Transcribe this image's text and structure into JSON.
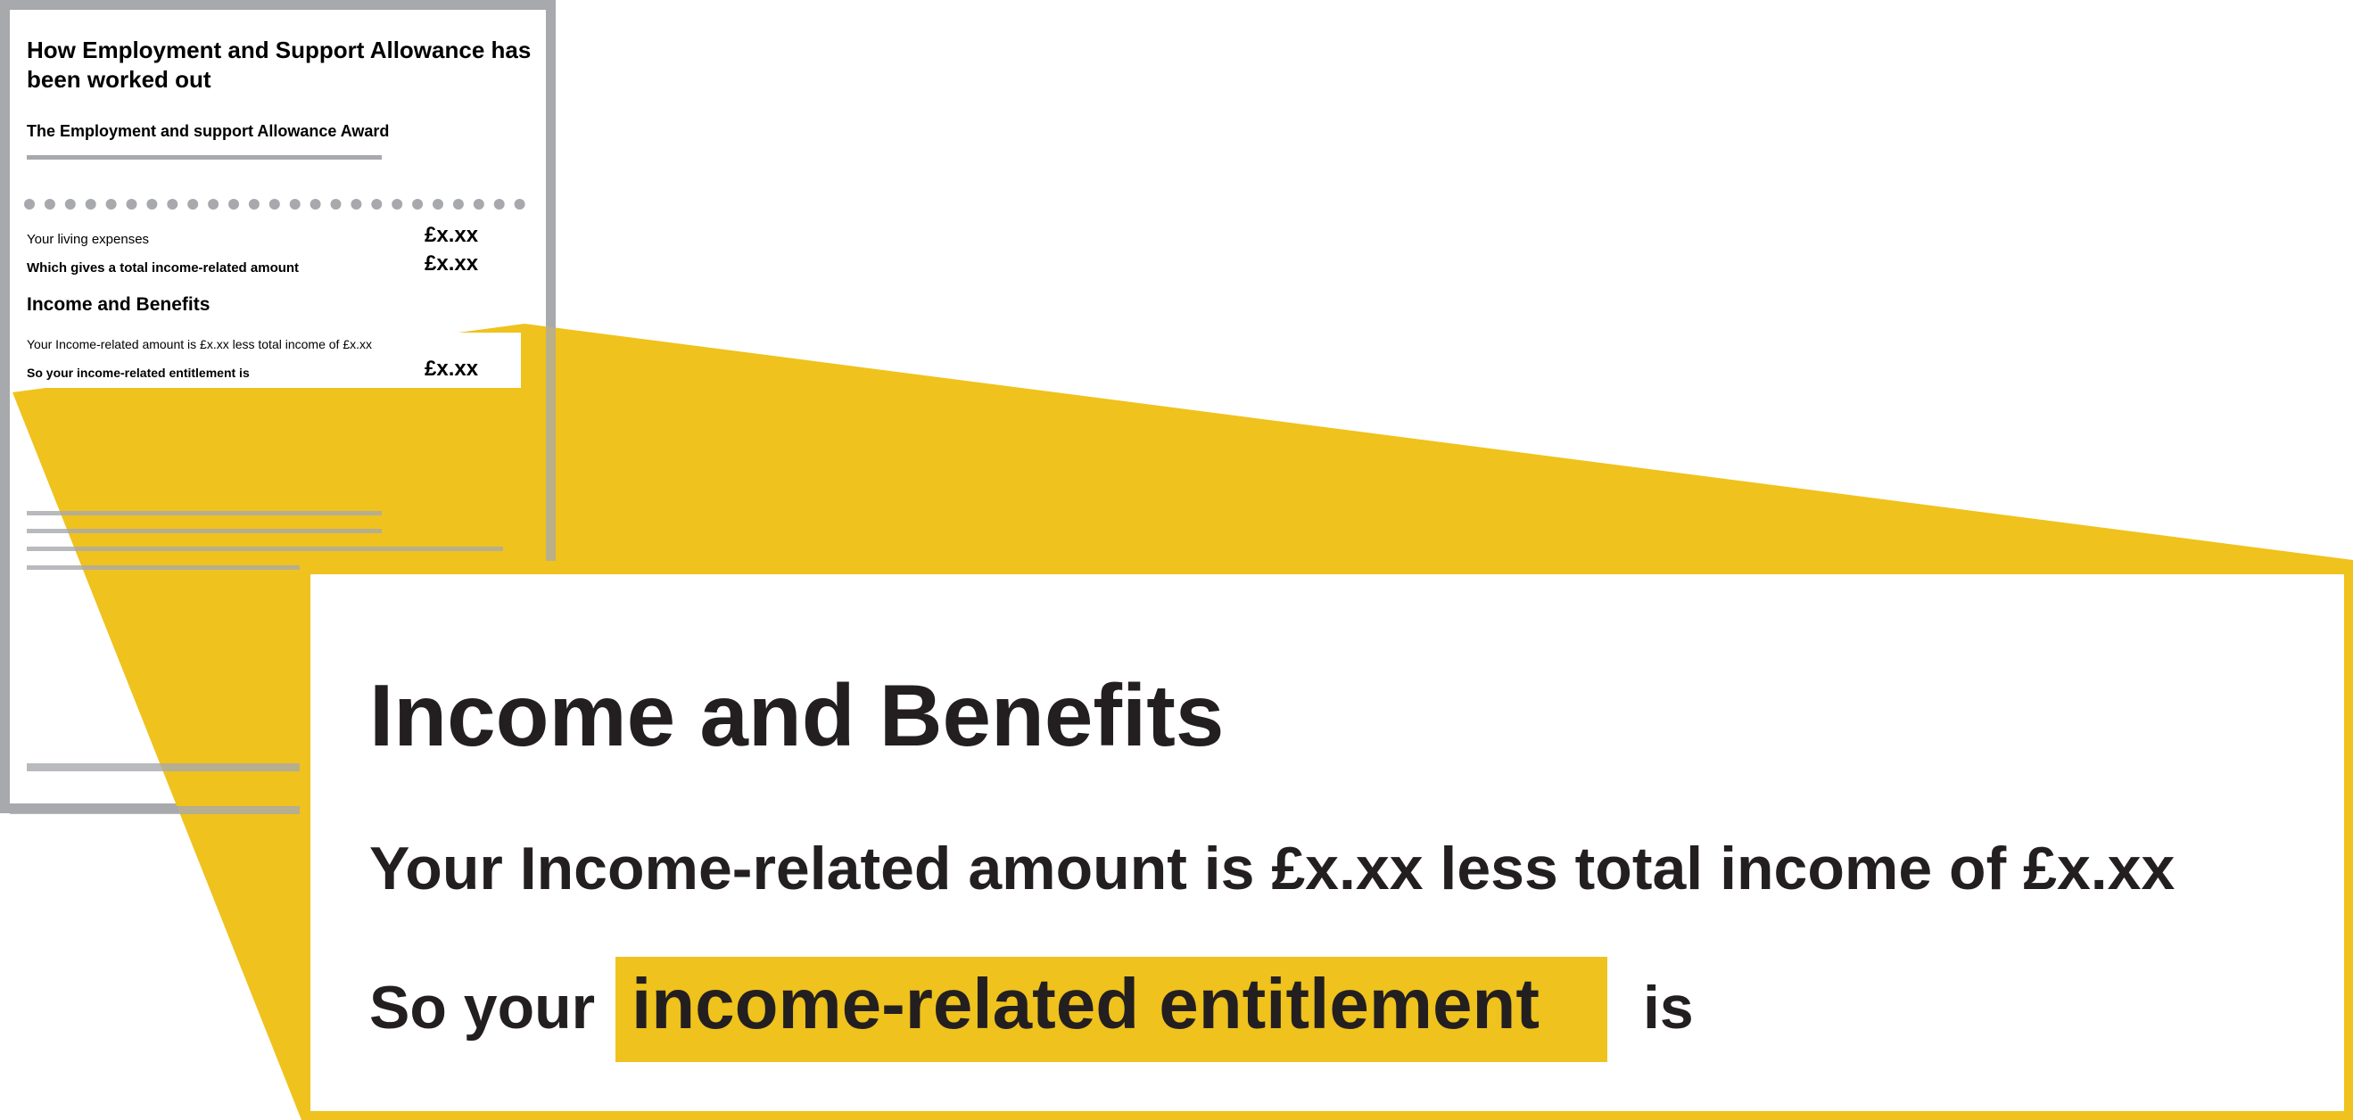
{
  "document": {
    "title": "How Employment and Support Allowance has been worked out",
    "subtitle": "The Employment and support Allowance Award",
    "rows": [
      {
        "label": "Your living expenses",
        "amount": "£x.xx"
      },
      {
        "label": "Which gives a total income-related amount",
        "amount": "£x.xx"
      }
    ],
    "section_heading": "Income and Benefits",
    "highlight_row1": "Your Income-related amount is £x.xx less total income of £x.xx",
    "highlight_row2_label": "So your income-related entitlement is",
    "highlight_row2_amount": "£x.xx"
  },
  "callout": {
    "heading": "Income and Benefits",
    "line1": "Your Income-related amount is £x.xx less total income of £x.xx",
    "line2_prefix": "So your",
    "line2_highlight": "income-related entitlement",
    "line2_suffix": "is"
  },
  "colors": {
    "accent_yellow": "#efc21d",
    "frame_grey": "#a7a9ac",
    "text_dark": "#231f20"
  }
}
